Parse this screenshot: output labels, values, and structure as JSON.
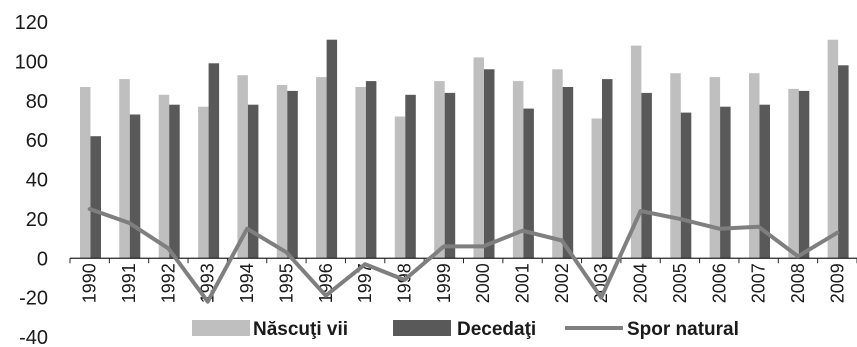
{
  "chart_data": {
    "type": "bar",
    "categories": [
      "1990",
      "1991",
      "1992",
      "1993",
      "1994",
      "1995",
      "1996",
      "1997",
      "1998",
      "1999",
      "2000",
      "2001",
      "2002",
      "2003",
      "2004",
      "2005",
      "2006",
      "2007",
      "2008",
      "2009"
    ],
    "series": [
      {
        "name": "Născuţi vii",
        "kind": "bar",
        "color": "#bfbfbf",
        "values": [
          87,
          91,
          83,
          77,
          93,
          88,
          92,
          87,
          72,
          90,
          102,
          90,
          96,
          71,
          108,
          94,
          92,
          94,
          86,
          111
        ]
      },
      {
        "name": "Decedaţi",
        "kind": "bar",
        "color": "#595959",
        "values": [
          62,
          73,
          78,
          99,
          78,
          85,
          111,
          90,
          83,
          84,
          96,
          76,
          87,
          91,
          84,
          74,
          77,
          78,
          85,
          98
        ]
      },
      {
        "name": "Spor natural",
        "kind": "line",
        "color": "#7f7f7f",
        "values": [
          25,
          18,
          5,
          -22,
          15,
          3,
          -19,
          -3,
          -11,
          6,
          6,
          14,
          9,
          -20,
          24,
          20,
          15,
          16,
          1,
          13
        ]
      }
    ],
    "ylim": [
      -40,
      120
    ],
    "yticks": [
      -40,
      -20,
      0,
      20,
      40,
      60,
      80,
      100,
      120
    ],
    "legend": "bottom",
    "grid": false
  }
}
